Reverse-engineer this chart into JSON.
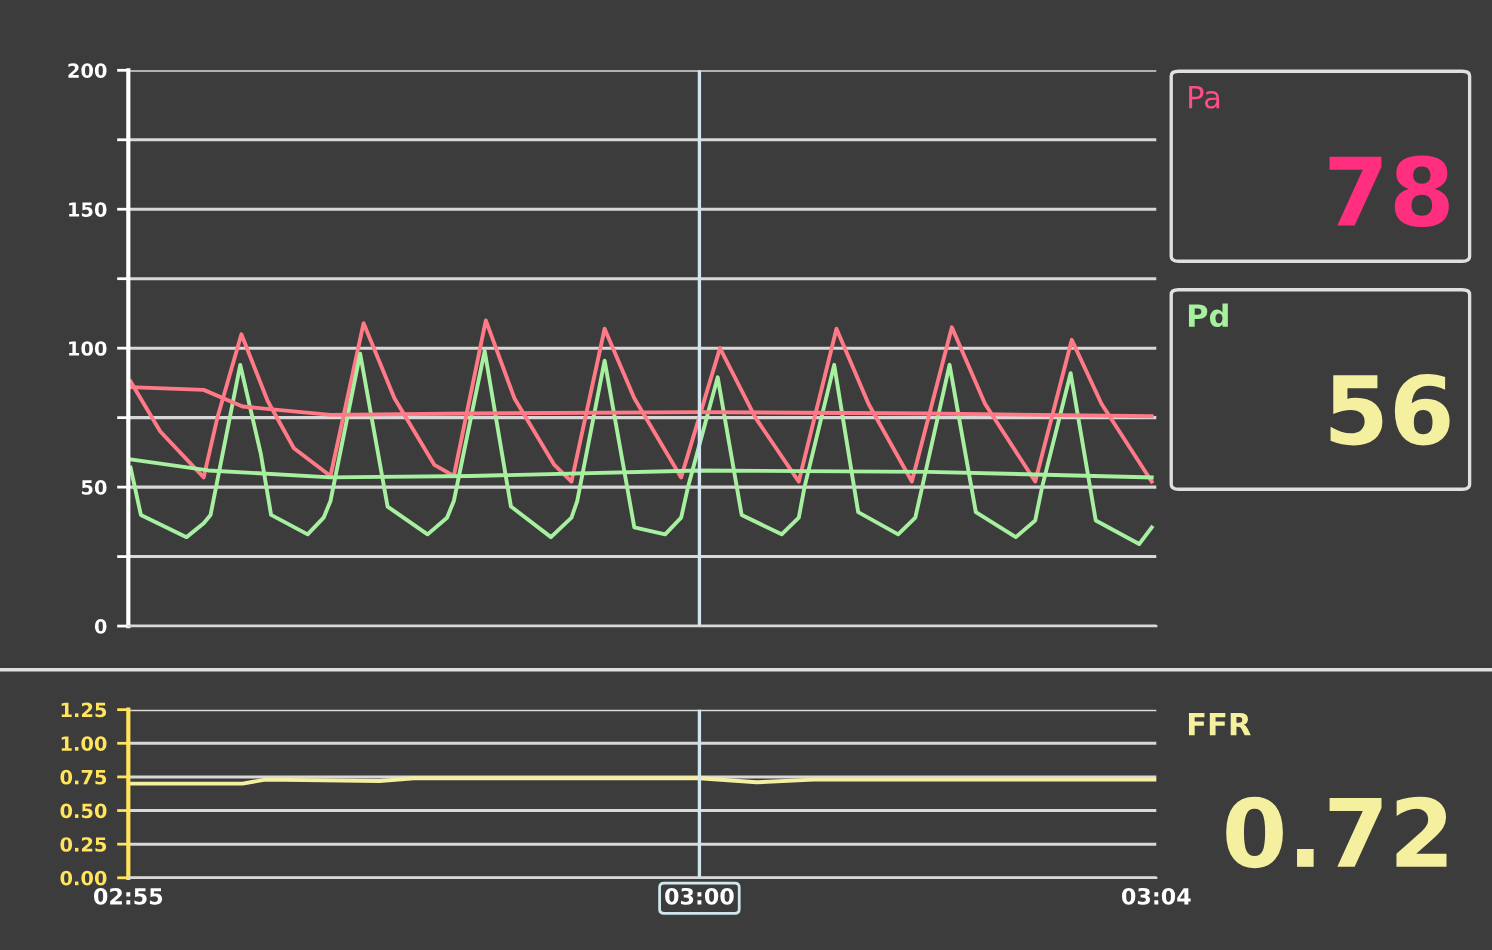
{
  "chart_data": [
    {
      "type": "line",
      "grid": "y",
      "tick_labels": "y",
      "xlim": [
        175,
        184
      ],
      "ylim": [
        0,
        200
      ],
      "yticks": [
        0,
        {
          "value": 25,
          "label": null
        },
        50,
        {
          "value": 75,
          "label": null
        },
        100,
        {
          "value": 125,
          "label": null
        },
        150,
        {
          "value": 175,
          "label": null
        },
        200
      ],
      "ref_lines": [
        {
          "axis": "x",
          "value": 180,
          "color": "#cfe6ee"
        }
      ],
      "annotations": [
        "Pa",
        "78",
        "Pd",
        "56"
      ],
      "series": [
        {
          "color": "#ff7a86",
          "x": [
            175.02,
            175.28,
            175.66,
            175.78,
            175.99,
            176.22,
            176.45,
            176.77,
            177.06,
            177.33,
            177.68,
            177.85,
            178.13,
            178.38,
            178.73,
            178.88,
            179.17,
            179.43,
            179.84,
            180.18,
            180.49,
            180.87,
            181.2,
            181.48,
            181.86,
            182.21,
            182.5,
            182.94,
            183.26,
            183.52,
            183.96
          ],
          "values": [
            88,
            70,
            53.5,
            75,
            105,
            81,
            64,
            54,
            109,
            82,
            58,
            54,
            110,
            82,
            58,
            52,
            107,
            82,
            53.5,
            100,
            75,
            52,
            107,
            80,
            52,
            107.5,
            80,
            52,
            103,
            80,
            52
          ]
        },
        {
          "color": "#a6f0a0",
          "x": [
            175.02,
            175.11,
            175.51,
            175.66,
            175.72,
            175.98,
            176.16,
            176.25,
            176.57,
            176.71,
            176.77,
            177.03,
            177.27,
            177.62,
            177.79,
            177.85,
            178.12,
            178.35,
            178.7,
            178.88,
            178.93,
            179.17,
            179.43,
            179.7,
            179.84,
            179.9,
            180.16,
            180.37,
            180.72,
            180.87,
            180.92,
            181.18,
            181.39,
            181.74,
            181.89,
            181.95,
            182.19,
            182.42,
            182.77,
            182.94,
            183.0,
            183.25,
            183.47,
            183.85,
            183.96
          ],
          "values": [
            57,
            40,
            32,
            37,
            40,
            94,
            62,
            40,
            33,
            39,
            45,
            98,
            43,
            33,
            39,
            45,
            99,
            43,
            32,
            39,
            45,
            95.5,
            35.5,
            33,
            39,
            50,
            89.5,
            40,
            33,
            39,
            50,
            94,
            41,
            33,
            39,
            50,
            94,
            41,
            32,
            38,
            50,
            91,
            38,
            29.5,
            35.5
          ]
        },
        {
          "color": "#ff7a86",
          "x": [
            175.02,
            175.66,
            176.0,
            176.77,
            178.0,
            180.0,
            182.0,
            183.96
          ],
          "values": [
            86,
            85,
            79,
            76,
            76.5,
            77,
            76.5,
            75.5
          ]
        },
        {
          "color": "#a6f0a0",
          "x": [
            175.02,
            175.7,
            176.77,
            178.0,
            180.0,
            182.0,
            183.96
          ],
          "values": [
            60,
            56,
            53.5,
            54,
            56,
            55.5,
            53.5
          ]
        }
      ]
    },
    {
      "type": "line",
      "grid": "y",
      "xlim": [
        175,
        184
      ],
      "ylim": [
        0,
        1.25
      ],
      "xticks": [
        {
          "value": 175,
          "label": "02:55"
        },
        {
          "value": 180,
          "label": "03:00"
        },
        {
          "value": 184,
          "label": "03:04"
        }
      ],
      "yticks": [
        {
          "value": 0,
          "label": "0.00"
        },
        {
          "value": 0.25,
          "label": "0.25"
        },
        {
          "value": 0.5,
          "label": "0.50"
        },
        {
          "value": 0.75,
          "label": "0.75"
        },
        {
          "value": 1,
          "label": "1.00"
        },
        {
          "value": 1.25,
          "label": "1.25"
        }
      ],
      "ref_lines": [
        {
          "axis": "x",
          "value": 180,
          "color": "#cfe6ee"
        }
      ],
      "annotations": [
        "FFR",
        "0.72"
      ],
      "series": [
        {
          "color": "#f5f0a0",
          "x": [
            175.0,
            176.0,
            176.2,
            177.2,
            177.5,
            178.0,
            180.0,
            180.5,
            181.0,
            184.0
          ],
          "values": [
            0.7,
            0.7,
            0.73,
            0.72,
            0.74,
            0.74,
            0.74,
            0.71,
            0.73,
            0.73
          ]
        }
      ]
    }
  ]
}
